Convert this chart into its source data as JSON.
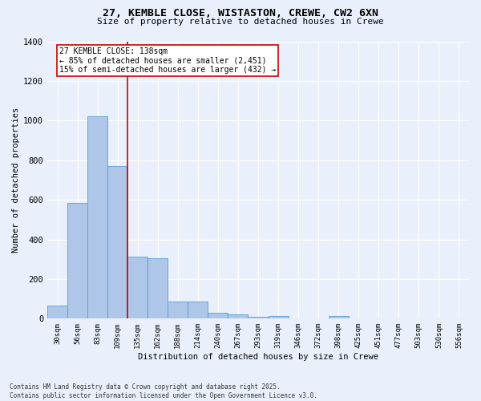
{
  "title_line1": "27, KEMBLE CLOSE, WISTASTON, CREWE, CW2 6XN",
  "title_line2": "Size of property relative to detached houses in Crewe",
  "xlabel": "Distribution of detached houses by size in Crewe",
  "ylabel": "Number of detached properties",
  "bins": [
    "30sqm",
    "56sqm",
    "83sqm",
    "109sqm",
    "135sqm",
    "162sqm",
    "188sqm",
    "214sqm",
    "240sqm",
    "267sqm",
    "293sqm",
    "319sqm",
    "346sqm",
    "372sqm",
    "398sqm",
    "425sqm",
    "451sqm",
    "477sqm",
    "503sqm",
    "530sqm",
    "556sqm"
  ],
  "values": [
    65,
    585,
    1020,
    770,
    315,
    305,
    85,
    85,
    30,
    20,
    10,
    15,
    0,
    0,
    12,
    0,
    0,
    0,
    0,
    0,
    0
  ],
  "bar_color": "#aec6e8",
  "bar_edge_color": "#5b9bd5",
  "background_color": "#eaf0fb",
  "grid_color": "#ffffff",
  "vline_color": "#cc0000",
  "vline_x": 3.5,
  "annotation_text": "27 KEMBLE CLOSE: 138sqm\n← 85% of detached houses are smaller (2,451)\n15% of semi-detached houses are larger (432) →",
  "annotation_box_color": "#ffffff",
  "annotation_box_edge": "#cc0000",
  "ylim": [
    0,
    1400
  ],
  "yticks": [
    0,
    200,
    400,
    600,
    800,
    1000,
    1200,
    1400
  ],
  "footer_line1": "Contains HM Land Registry data © Crown copyright and database right 2025.",
  "footer_line2": "Contains public sector information licensed under the Open Government Licence v3.0."
}
